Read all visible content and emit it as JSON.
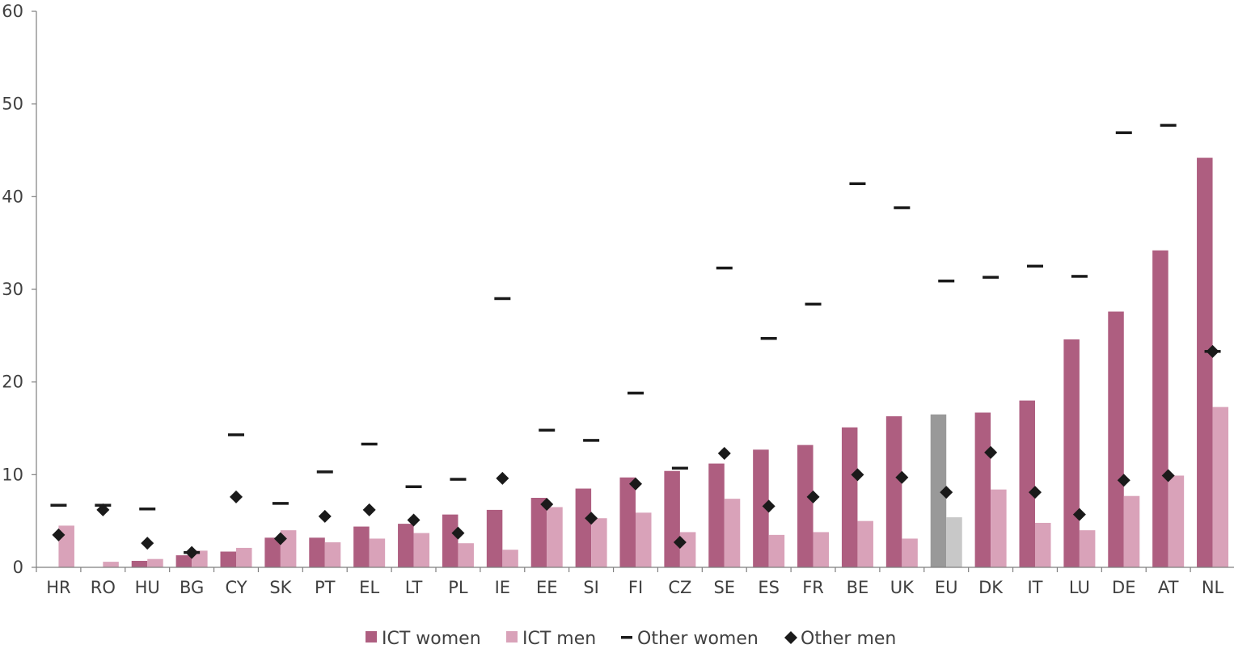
{
  "chart_data": {
    "type": "bar",
    "categories": [
      "HR",
      "RO",
      "HU",
      "BG",
      "CY",
      "SK",
      "PT",
      "EL",
      "LT",
      "PL",
      "IE",
      "EE",
      "SI",
      "FI",
      "CZ",
      "SE",
      "ES",
      "FR",
      "BE",
      "UK",
      "EU",
      "DK",
      "IT",
      "LU",
      "DE",
      "AT",
      "NL"
    ],
    "highlight_category": "EU",
    "ylim": [
      0,
      60
    ],
    "yticks": [
      0,
      10,
      20,
      30,
      40,
      50,
      60
    ],
    "grid": false,
    "legend_position": "bottom",
    "series": [
      {
        "name": "ICT women",
        "kind": "bar",
        "color": "#ae5e80",
        "highlight_color": "#999999",
        "values": [
          0,
          0,
          0.7,
          1.3,
          1.7,
          3.2,
          3.2,
          4.4,
          4.7,
          5.7,
          6.2,
          7.5,
          8.5,
          9.7,
          10.4,
          11.2,
          12.7,
          13.2,
          15.1,
          16.3,
          16.5,
          16.7,
          18.0,
          24.6,
          27.6,
          34.2,
          44.2
        ]
      },
      {
        "name": "ICT men",
        "kind": "bar",
        "color": "#d9a2b9",
        "highlight_color": "#c8c8c8",
        "values": [
          4.5,
          0.6,
          0.9,
          1.8,
          2.1,
          4.0,
          2.7,
          3.1,
          3.7,
          2.6,
          1.9,
          6.5,
          5.3,
          5.9,
          3.8,
          7.4,
          3.5,
          3.8,
          5.0,
          3.1,
          5.4,
          8.4,
          4.8,
          4.0,
          7.7,
          9.9,
          17.3
        ]
      },
      {
        "name": "Other women",
        "kind": "dash",
        "color": "#1a1a1a",
        "values": [
          6.7,
          6.7,
          6.3,
          1.6,
          14.3,
          6.9,
          10.3,
          13.3,
          8.7,
          9.5,
          29.0,
          14.8,
          13.7,
          18.8,
          10.7,
          32.3,
          24.7,
          28.4,
          41.4,
          38.8,
          30.9,
          31.3,
          32.5,
          31.4,
          46.9,
          47.7,
          23.3
        ]
      },
      {
        "name": "Other men",
        "kind": "diamond",
        "color": "#1a1a1a",
        "values": [
          3.5,
          6.2,
          2.6,
          1.6,
          7.6,
          3.1,
          5.5,
          6.2,
          5.1,
          3.7,
          9.6,
          6.8,
          5.3,
          9.0,
          2.7,
          12.3,
          6.6,
          7.6,
          10.0,
          9.7,
          8.1,
          12.4,
          8.1,
          5.7,
          9.4,
          9.9,
          23.3
        ]
      }
    ]
  }
}
